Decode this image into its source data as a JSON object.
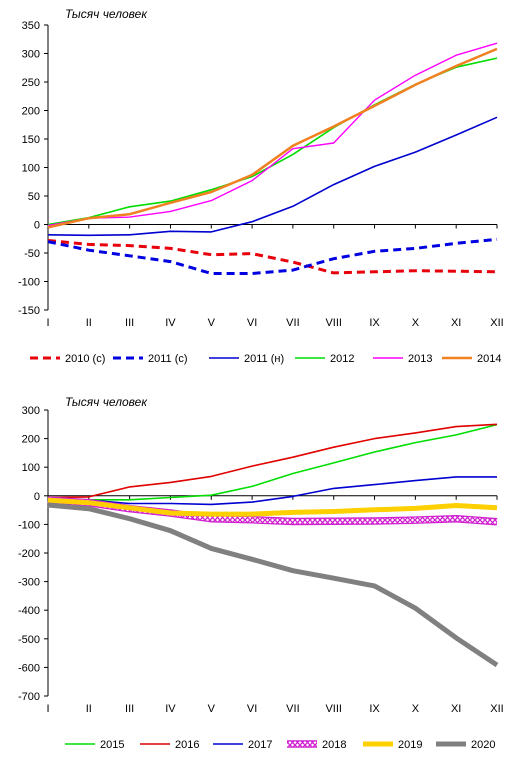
{
  "chart_data": [
    {
      "type": "line",
      "unit_label": "Тысяч человек",
      "categories": [
        "I",
        "II",
        "III",
        "IV",
        "V",
        "VI",
        "VII",
        "VIII",
        "IX",
        "X",
        "XI",
        "XII"
      ],
      "ylim": [
        -150,
        350
      ],
      "yticks": [
        -150,
        -100,
        -50,
        0,
        50,
        100,
        150,
        200,
        250,
        300,
        350
      ],
      "grid": false,
      "legend_position": "bottom",
      "series": [
        {
          "name": "2010 (с)",
          "color": "#e8000b",
          "dash": true,
          "width": 3,
          "values": [
            -28,
            -35,
            -37,
            -42,
            -53,
            -51,
            -66,
            -85,
            -83,
            -81,
            -82,
            -83
          ]
        },
        {
          "name": "2011 (с)",
          "color": "#0000e0",
          "dash": true,
          "width": 3,
          "values": [
            -30,
            -45,
            -55,
            -65,
            -86,
            -86,
            -80,
            -60,
            -47,
            -42,
            -33,
            -26
          ]
        },
        {
          "name": "2011 (н)",
          "color": "#0000d0",
          "dash": false,
          "width": 1.6,
          "values": [
            -18,
            -19,
            -18,
            -12,
            -13,
            5,
            32,
            70,
            102,
            127,
            157,
            188
          ]
        },
        {
          "name": "2012",
          "color": "#00dd00",
          "dash": false,
          "width": 1.6,
          "values": [
            0,
            12,
            31,
            41,
            61,
            84,
            123,
            170,
            210,
            246,
            276,
            292
          ]
        },
        {
          "name": "2013",
          "color": "#ff00ff",
          "dash": false,
          "width": 1.4,
          "values": [
            -2,
            11,
            13,
            23,
            42,
            77,
            133,
            143,
            218,
            262,
            297,
            318
          ]
        },
        {
          "name": "2014",
          "color": "#f08020",
          "dash": false,
          "width": 2.5,
          "values": [
            -5,
            11,
            18,
            38,
            57,
            87,
            138,
            172,
            208,
            245,
            278,
            308
          ]
        }
      ]
    },
    {
      "type": "line",
      "unit_label": "Тысяч человек",
      "categories": [
        "I",
        "II",
        "III",
        "IV",
        "V",
        "VI",
        "VII",
        "VIII",
        "IX",
        "X",
        "XI",
        "XII"
      ],
      "ylim": [
        -700,
        300
      ],
      "yticks": [
        -700,
        -600,
        -500,
        -400,
        -300,
        -200,
        -100,
        0,
        100,
        200,
        300
      ],
      "grid": false,
      "legend_position": "bottom",
      "series": [
        {
          "name": "2015",
          "color": "#00dd00",
          "style": "solid",
          "width": 1.6,
          "values": [
            -10,
            -14,
            -14,
            -6,
            2,
            33,
            78,
            115,
            153,
            186,
            213,
            249
          ]
        },
        {
          "name": "2016",
          "color": "#e00000",
          "style": "solid",
          "width": 1.6,
          "values": [
            -6,
            -4,
            31,
            47,
            68,
            104,
            135,
            170,
            200,
            220,
            242,
            250
          ]
        },
        {
          "name": "2017",
          "color": "#0000d0",
          "style": "solid",
          "width": 1.6,
          "values": [
            -14,
            -15,
            -27,
            -27,
            -30,
            -22,
            -2,
            26,
            39,
            53,
            66,
            66
          ]
        },
        {
          "name": "2018",
          "color": "#d020d0",
          "style": "hatched",
          "width": 6,
          "values": [
            -15,
            -24,
            -45,
            -60,
            -80,
            -84,
            -90,
            -89,
            -88,
            -85,
            -80,
            -91
          ]
        },
        {
          "name": "2019",
          "color": "#ffd000",
          "style": "solid",
          "width": 5,
          "values": [
            -15,
            -24,
            -42,
            -60,
            -64,
            -64,
            -58,
            -55,
            -49,
            -44,
            -34,
            -42
          ]
        },
        {
          "name": "2020",
          "color": "#808080",
          "style": "solid",
          "width": 5,
          "values": [
            -32,
            -45,
            -80,
            -122,
            -184,
            -222,
            -262,
            -288,
            -315,
            -393,
            -497,
            -592
          ]
        }
      ]
    }
  ]
}
